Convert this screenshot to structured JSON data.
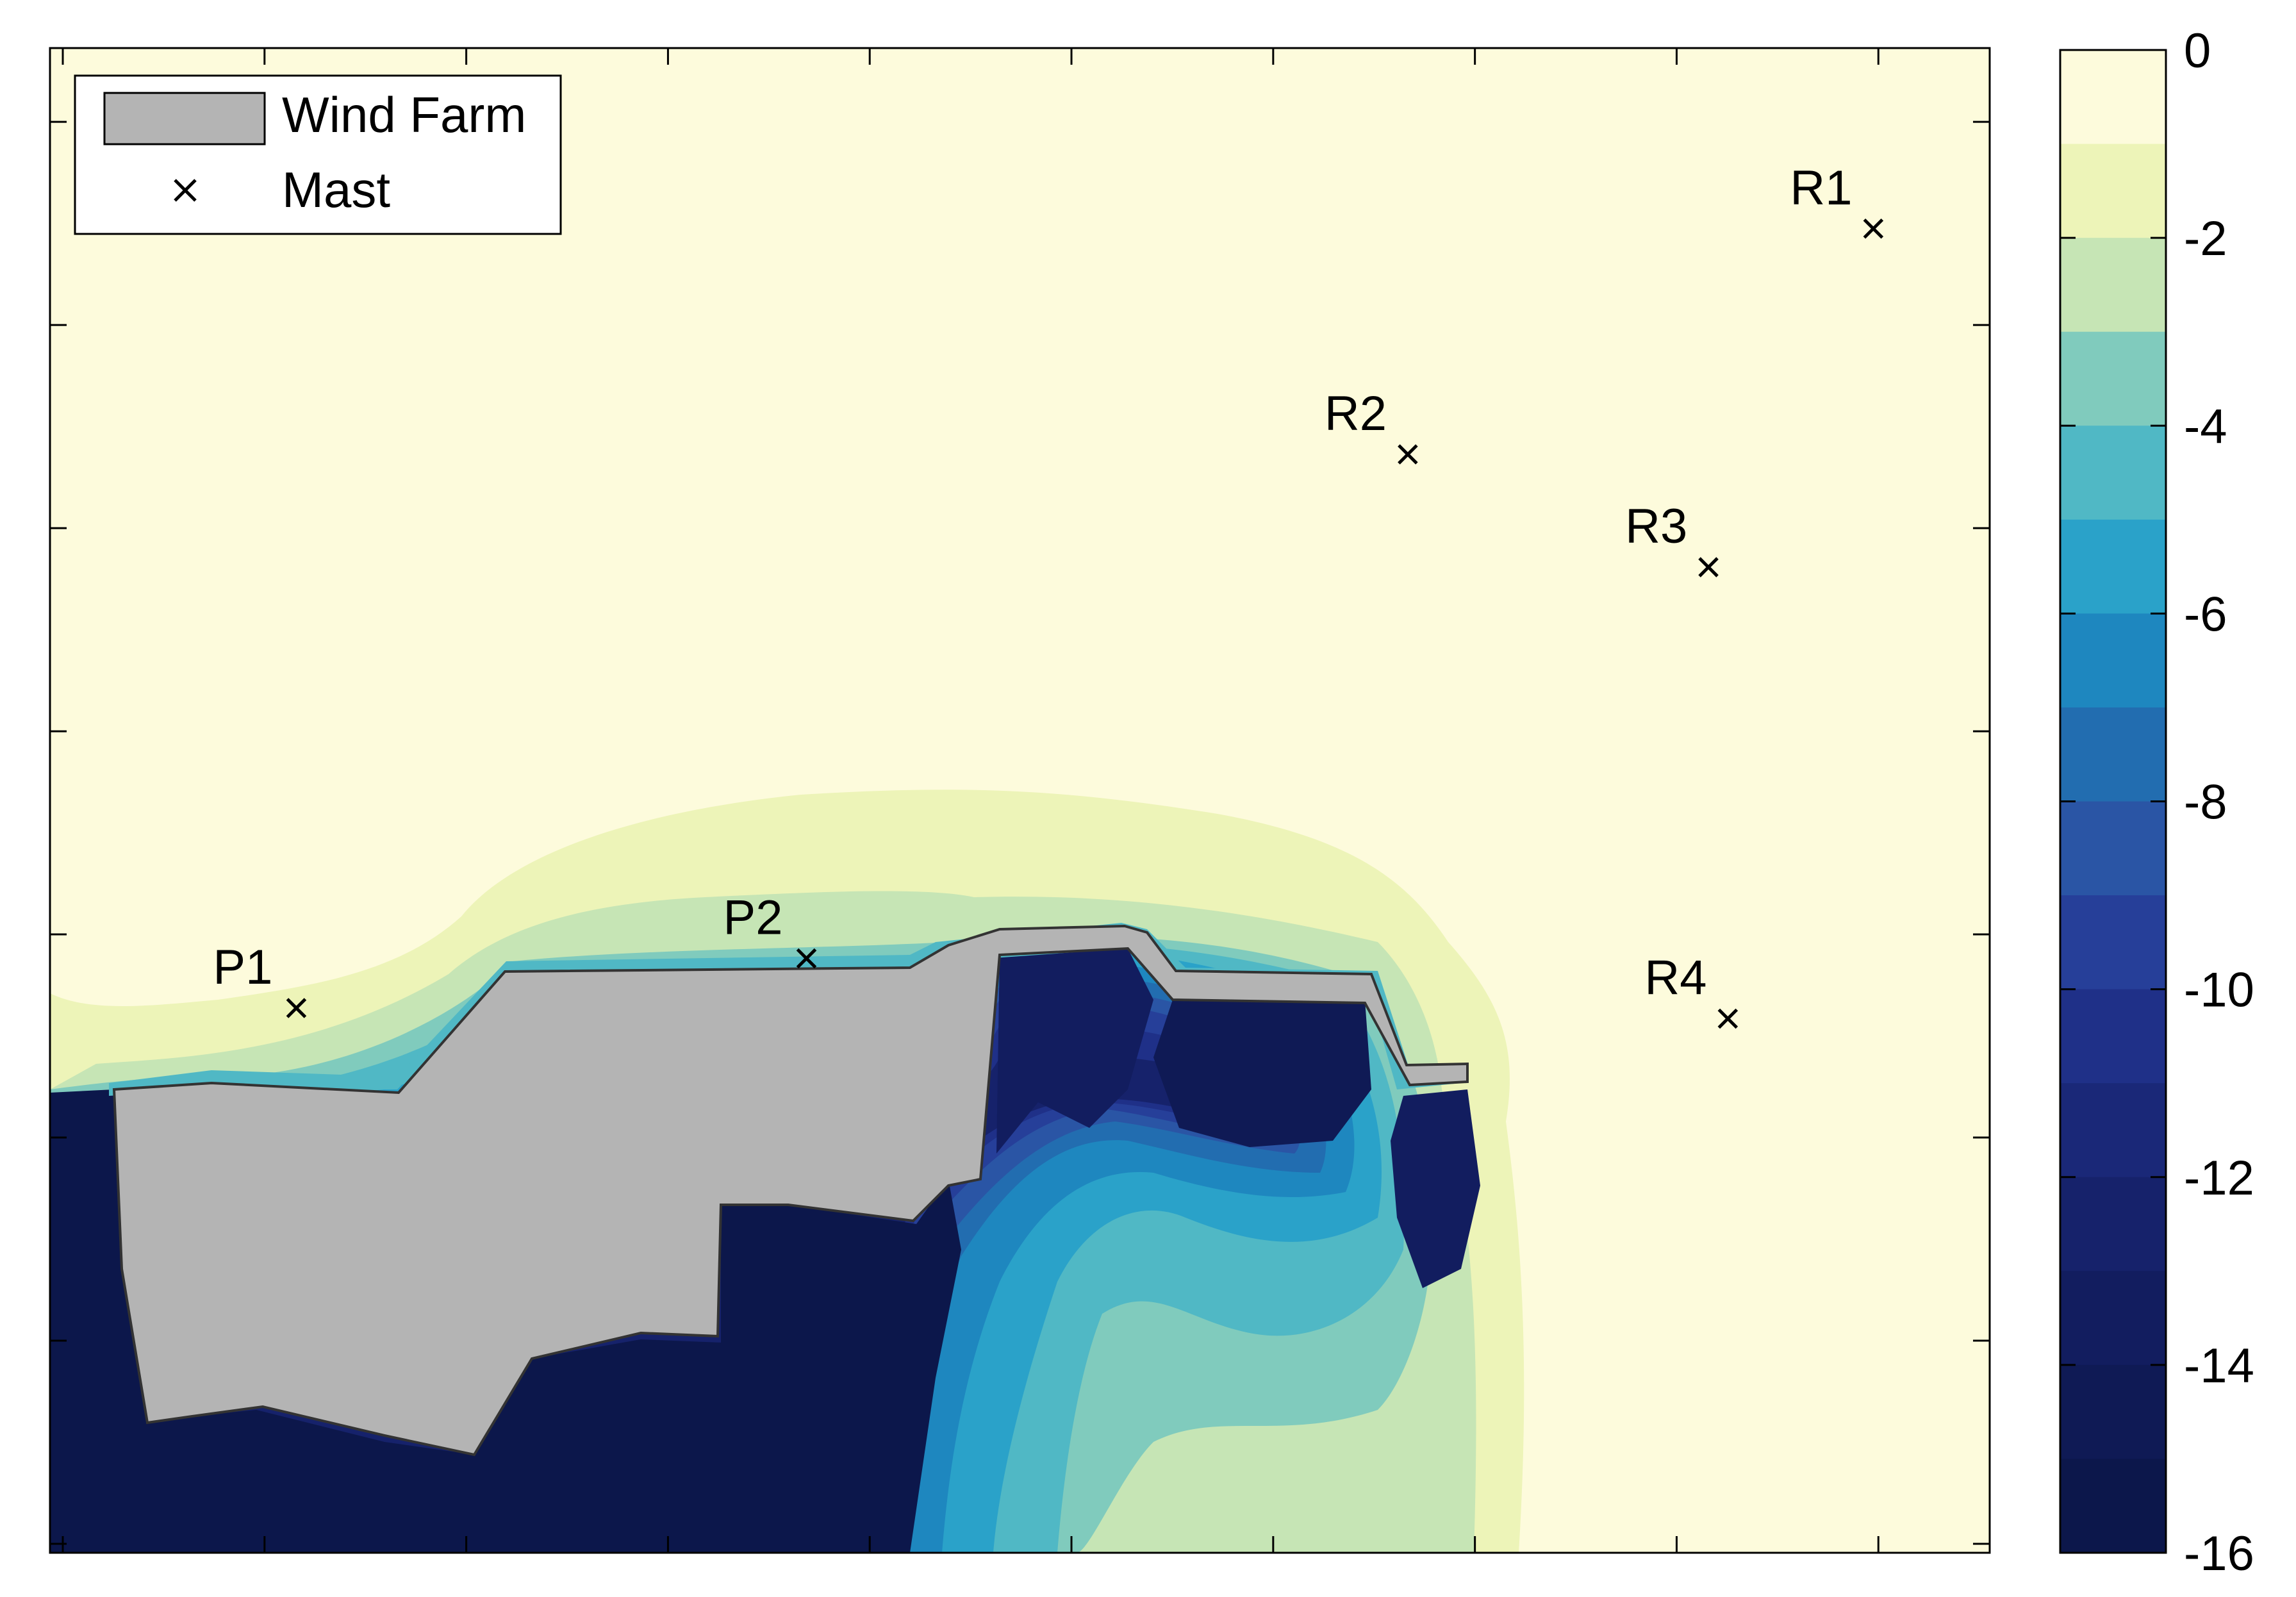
{
  "chart_data": {
    "type": "heatmap",
    "title": "",
    "xlabel": "",
    "ylabel": "",
    "grid": false,
    "legend_position": "top-left",
    "legend": [
      {
        "label": "Wind Farm",
        "symbol": "patch",
        "color": "#b4b4b4"
      },
      {
        "label": "Mast",
        "symbol": "x",
        "color": "#000000"
      }
    ],
    "colorbar": {
      "range": [
        -16,
        0
      ],
      "tick_labels": [
        "0",
        "-2",
        "-4",
        "-6",
        "-8",
        "-10",
        "-12",
        "-14",
        "-16"
      ],
      "levels": [
        {
          "from": -1,
          "to": 0,
          "color": "#fdfbdc"
        },
        {
          "from": -2,
          "to": -1,
          "color": "#edf4b8"
        },
        {
          "from": -3,
          "to": -2,
          "color": "#c6e5b5"
        },
        {
          "from": -4,
          "to": -3,
          "color": "#80cbbd"
        },
        {
          "from": -5,
          "to": -4,
          "color": "#50b8c5"
        },
        {
          "from": -6,
          "to": -5,
          "color": "#2aa2c9"
        },
        {
          "from": -7,
          "to": -6,
          "color": "#1e87bf"
        },
        {
          "from": -8,
          "to": -7,
          "color": "#226db0"
        },
        {
          "from": -9,
          "to": -8,
          "color": "#2a55a5"
        },
        {
          "from": -10,
          "to": -9,
          "color": "#263f99"
        },
        {
          "from": -11,
          "to": -10,
          "color": "#1f3088"
        },
        {
          "from": -12,
          "to": -11,
          "color": "#1a2878"
        },
        {
          "from": -13,
          "to": -12,
          "color": "#16226b"
        },
        {
          "from": -14,
          "to": -13,
          "color": "#121d5f"
        },
        {
          "from": -15,
          "to": -14,
          "color": "#0f1a55"
        },
        {
          "from": -16,
          "to": -15,
          "color": "#0c174b"
        }
      ]
    },
    "masts": [
      {
        "label": "R1",
        "x": 0.94,
        "y": 0.88
      },
      {
        "label": "R2",
        "x": 0.7,
        "y": 0.73
      },
      {
        "label": "R3",
        "x": 0.855,
        "y": 0.655
      },
      {
        "label": "R4",
        "x": 0.865,
        "y": 0.355
      },
      {
        "label": "P2",
        "x": 0.39,
        "y": 0.395
      },
      {
        "label": "P1",
        "x": 0.127,
        "y": 0.362
      }
    ],
    "background_color": "#fdfbdc",
    "wind_farm_color": "#b4b4b4"
  }
}
